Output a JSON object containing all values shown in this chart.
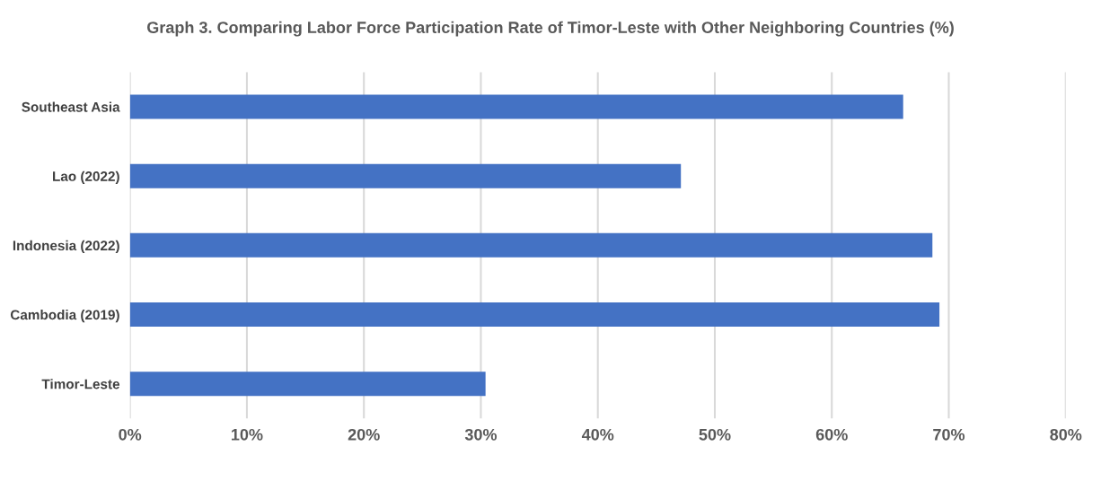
{
  "chart_data": {
    "type": "bar",
    "orientation": "horizontal",
    "title": "Graph 3. Comparing Labor Force Participation Rate of Timor-Leste with Other Neighboring Countries (%)",
    "categories": [
      "Southeast Asia",
      "Lao (2022)",
      "Indonesia (2022)",
      "Cambodia (2019)",
      "Timor-Leste"
    ],
    "values": [
      66.1,
      47.1,
      68.6,
      69.2,
      30.4
    ],
    "color": "#4472c4",
    "xlim": [
      0,
      80
    ],
    "xticks": [
      {
        "value": 0,
        "label": "0%"
      },
      {
        "value": 10,
        "label": "10%"
      },
      {
        "value": 20,
        "label": "20%"
      },
      {
        "value": 30,
        "label": "30%"
      },
      {
        "value": 40,
        "label": "40%"
      },
      {
        "value": 50,
        "label": "50%"
      },
      {
        "value": 60,
        "label": "60%"
      },
      {
        "value": 70,
        "label": "70%"
      },
      {
        "value": 80,
        "label": "80%"
      }
    ],
    "grid": "x",
    "legend": false
  }
}
